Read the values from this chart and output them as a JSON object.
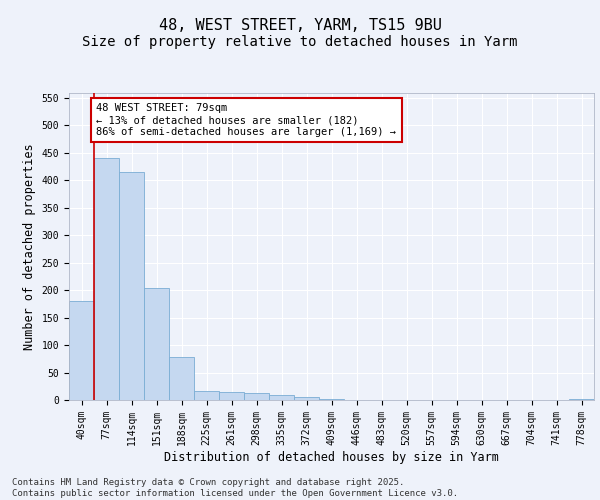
{
  "title1": "48, WEST STREET, YARM, TS15 9BU",
  "title2": "Size of property relative to detached houses in Yarm",
  "xlabel": "Distribution of detached houses by size in Yarm",
  "ylabel": "Number of detached properties",
  "categories": [
    "40sqm",
    "77sqm",
    "114sqm",
    "151sqm",
    "188sqm",
    "225sqm",
    "261sqm",
    "298sqm",
    "335sqm",
    "372sqm",
    "409sqm",
    "446sqm",
    "483sqm",
    "520sqm",
    "557sqm",
    "594sqm",
    "630sqm",
    "667sqm",
    "704sqm",
    "741sqm",
    "778sqm"
  ],
  "values": [
    181,
    441,
    415,
    204,
    79,
    17,
    15,
    12,
    9,
    5,
    2,
    0,
    0,
    0,
    0,
    0,
    0,
    0,
    0,
    0,
    2
  ],
  "bar_color": "#c5d8f0",
  "bar_edge_color": "#7aadd4",
  "marker_line_color": "#cc0000",
  "annotation_text": "48 WEST STREET: 79sqm\n← 13% of detached houses are smaller (182)\n86% of semi-detached houses are larger (1,169) →",
  "annotation_box_color": "#ffffff",
  "annotation_box_edge": "#cc0000",
  "bg_color": "#eef2fa",
  "grid_color": "#ffffff",
  "ylim": [
    0,
    560
  ],
  "yticks": [
    0,
    50,
    100,
    150,
    200,
    250,
    300,
    350,
    400,
    450,
    500,
    550
  ],
  "footer": "Contains HM Land Registry data © Crown copyright and database right 2025.\nContains public sector information licensed under the Open Government Licence v3.0.",
  "title_fontsize": 11,
  "subtitle_fontsize": 10,
  "axis_label_fontsize": 8.5,
  "tick_fontsize": 7,
  "footer_fontsize": 6.5,
  "annotation_fontsize": 7.5
}
